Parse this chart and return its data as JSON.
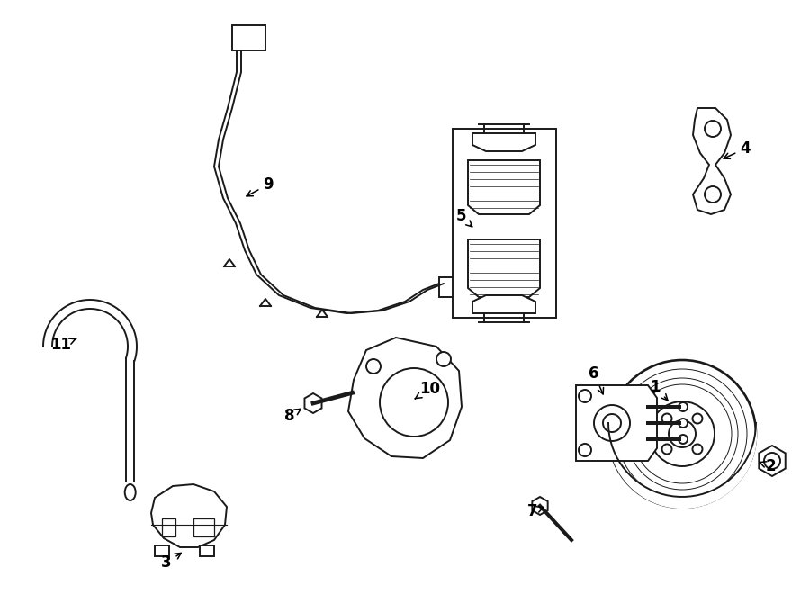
{
  "bg_color": "#ffffff",
  "line_color": "#1a1a1a",
  "lw": 1.4,
  "fig_width": 9.0,
  "fig_height": 6.61,
  "dpi": 100
}
